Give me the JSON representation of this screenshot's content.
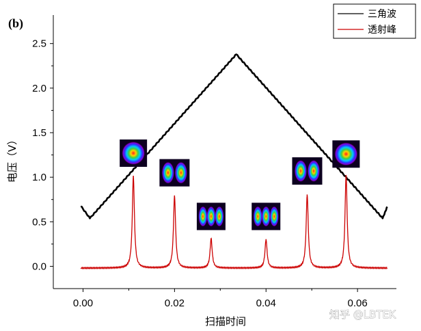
{
  "panel_label": "(b)",
  "watermark": "知乎 @LBTEK",
  "chart_data": {
    "type": "line",
    "xlabel": "扫描时间",
    "ylabel": "电压（V）",
    "xlim": [
      -0.0065,
      0.0685
    ],
    "ylim": [
      -0.25,
      2.82
    ],
    "xticks": [
      0.0,
      0.02,
      0.04,
      0.06
    ],
    "xtick_labels": [
      "0.00",
      "0.02",
      "0.04",
      "0.06"
    ],
    "yticks": [
      0.0,
      0.5,
      1.0,
      1.5,
      2.0,
      2.5
    ],
    "ytick_labels": [
      "0.0",
      "0.5",
      "1.0",
      "1.5",
      "2.0",
      "2.5"
    ],
    "grid": false,
    "legend_position": "top-right",
    "series": [
      {
        "name": "三角波",
        "color": "#000000",
        "x": [
          -0.0005,
          0.0015,
          0.0335,
          0.0655,
          0.0665
        ],
        "y": [
          0.68,
          0.54,
          2.38,
          0.54,
          0.67
        ]
      },
      {
        "name": "透射峰",
        "color": "#cc0000",
        "baseline": -0.02,
        "x_range": [
          -0.0005,
          0.0665
        ],
        "peaks": [
          {
            "x": 0.011,
            "y": 1.01,
            "mode": "single"
          },
          {
            "x": 0.02,
            "y": 0.79,
            "mode": "double"
          },
          {
            "x": 0.028,
            "y": 0.31,
            "mode": "triple"
          },
          {
            "x": 0.04,
            "y": 0.3,
            "mode": "triple"
          },
          {
            "x": 0.049,
            "y": 0.8,
            "mode": "double"
          },
          {
            "x": 0.0575,
            "y": 1.02,
            "mode": "single"
          }
        ]
      }
    ],
    "mode_images": [
      {
        "mode": "single",
        "x": 0.011,
        "y": 1.27
      },
      {
        "mode": "double",
        "x": 0.02,
        "y": 1.05
      },
      {
        "mode": "triple",
        "x": 0.028,
        "y": 0.56
      },
      {
        "mode": "triple",
        "x": 0.04,
        "y": 0.56
      },
      {
        "mode": "double",
        "x": 0.049,
        "y": 1.07
      },
      {
        "mode": "single",
        "x": 0.0575,
        "y": 1.26
      }
    ]
  }
}
